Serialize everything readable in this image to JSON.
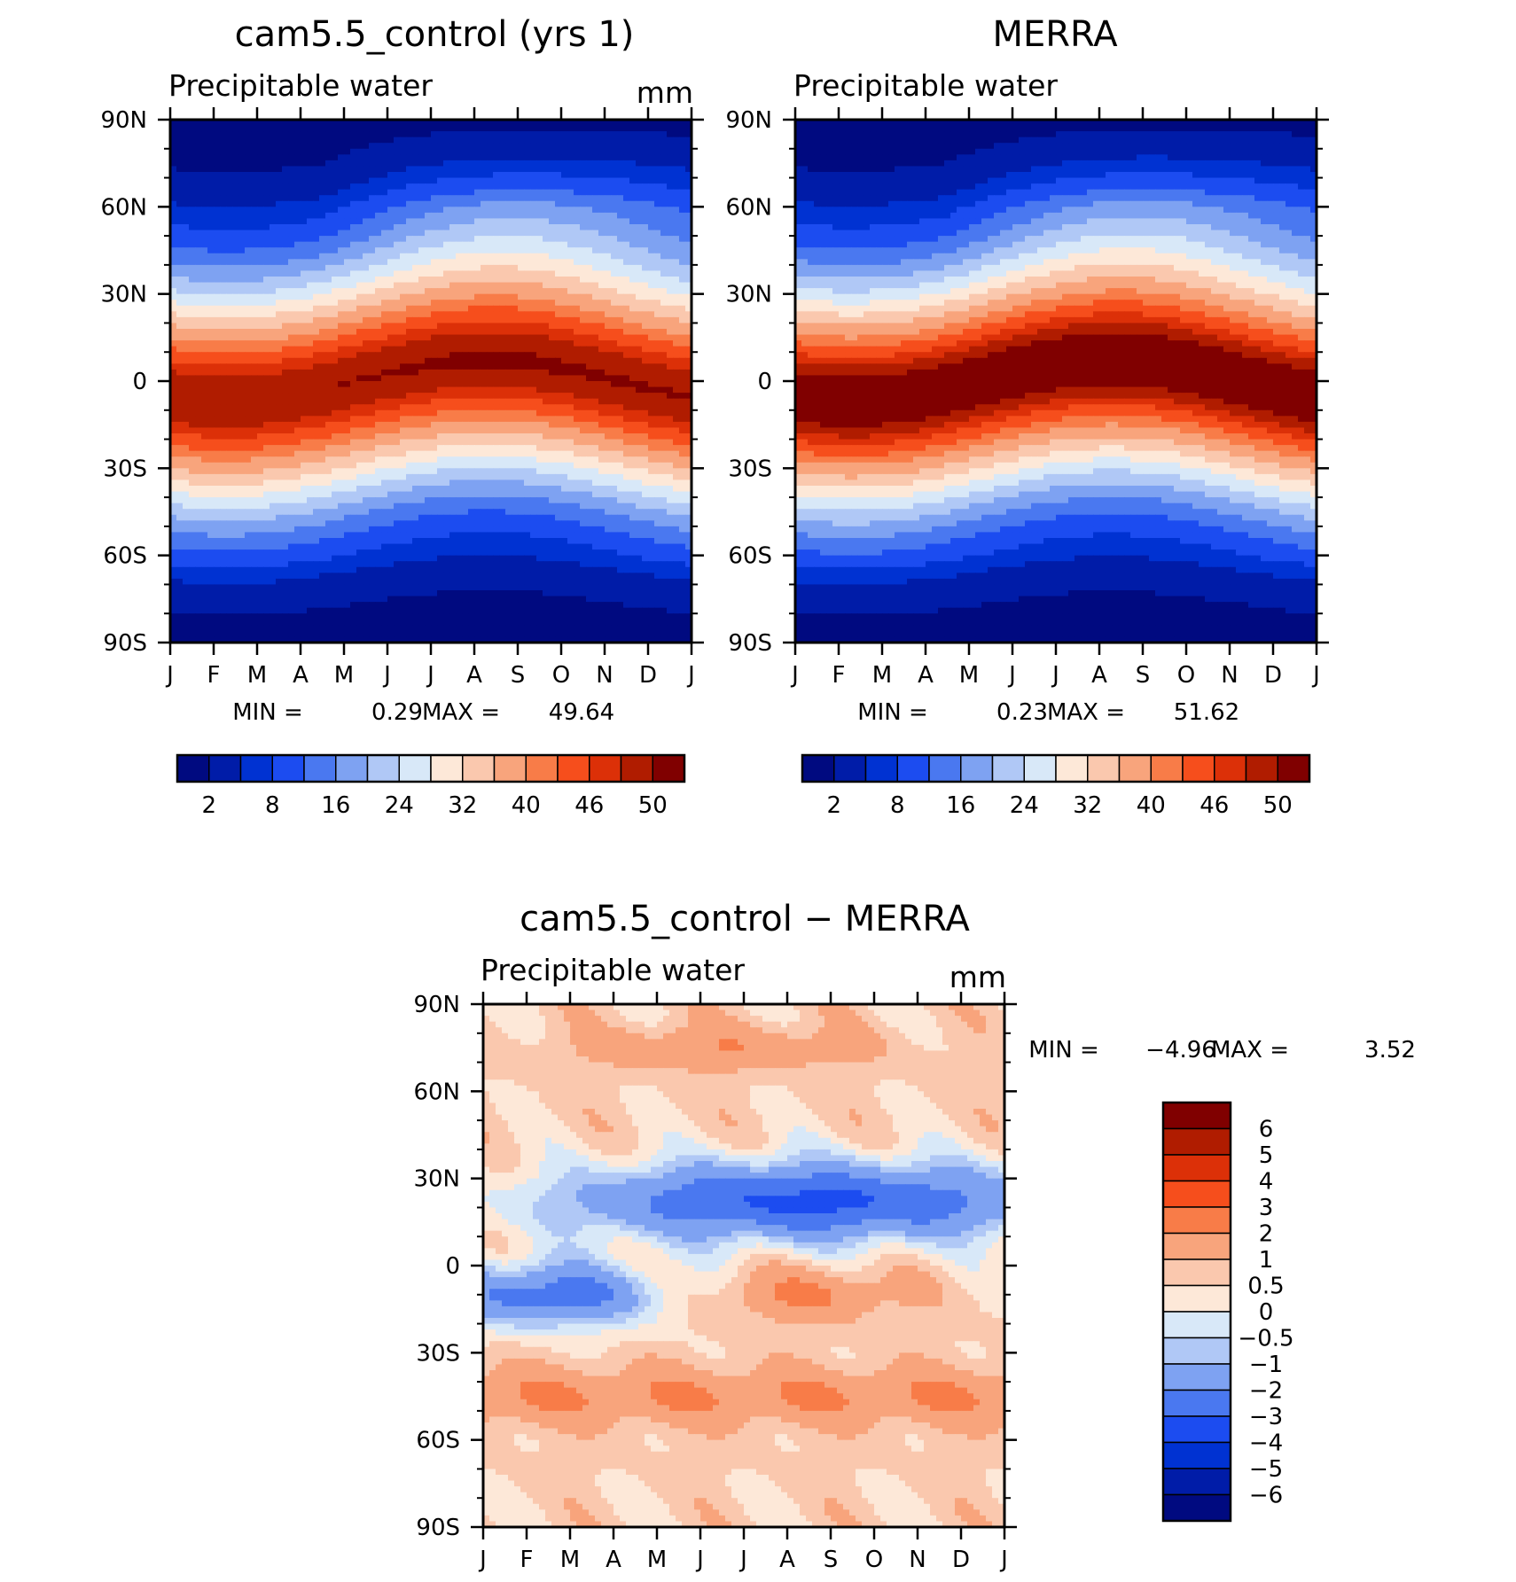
{
  "panels": [
    {
      "id": "model",
      "title": "cam5.5_control (yrs 1)",
      "subtitle": "Precipitable water",
      "units": "mm",
      "stats": {
        "min_label": "MIN =",
        "min": "0.29",
        "max_label": "MAX =",
        "max": "49.64"
      }
    },
    {
      "id": "obs",
      "title": "MERRA",
      "subtitle": "Precipitable water",
      "units": "",
      "stats": {
        "min_label": "MIN =",
        "min": "0.23",
        "max_label": "MAX =",
        "max": "51.62"
      }
    },
    {
      "id": "diff",
      "title": "cam5.5_control − MERRA",
      "subtitle": "Precipitable water",
      "units": "mm",
      "stats": {
        "min_label": "MIN =",
        "min": "−4.96",
        "max_label": "MAX =",
        "max": "3.52"
      }
    }
  ],
  "axes": {
    "lat_labels": [
      "90N",
      "60N",
      "30N",
      "0",
      "30S",
      "60S",
      "90S"
    ],
    "month_labels": [
      "J",
      "F",
      "M",
      "A",
      "M",
      "J",
      "J",
      "A",
      "S",
      "O",
      "N",
      "D",
      "J"
    ]
  },
  "colorbars": {
    "abs": {
      "colors": [
        "#000a80",
        "#001ca8",
        "#0032d2",
        "#1c4cf0",
        "#4a78f0",
        "#7ea2f2",
        "#b0c8f6",
        "#d8e8f8",
        "#fde8d8",
        "#fac8ae",
        "#f8a47c",
        "#f87c48",
        "#f64e1c",
        "#dc3008",
        "#b01c00",
        "#800000"
      ],
      "labels": [
        "2",
        "8",
        "16",
        "24",
        "32",
        "40",
        "46",
        "50"
      ]
    },
    "diff": {
      "colors": [
        "#800000",
        "#b01c00",
        "#dc3008",
        "#f64e1c",
        "#f87c48",
        "#f8a47c",
        "#fac8ae",
        "#fde8d8",
        "#d8e8f8",
        "#b0c8f6",
        "#7ea2f2",
        "#4a78f0",
        "#1c4cf0",
        "#0032d2",
        "#001ca8",
        "#000a80"
      ],
      "labels": [
        "6",
        "5",
        "4",
        "3",
        "2",
        "1",
        "0.5",
        "0",
        "−0.5",
        "−1",
        "−2",
        "−3",
        "−4",
        "−5",
        "−6"
      ]
    }
  },
  "chart_data": [
    {
      "type": "heatmap",
      "title": "cam5.5_control (yrs 1)",
      "variable": "Precipitable water",
      "units": "mm",
      "x": "month (Jan–Jan)",
      "y": "latitude (90S–90N)",
      "min": 0.29,
      "max": 49.64,
      "levels": [
        2,
        8,
        16,
        24,
        32,
        40,
        46,
        50
      ]
    },
    {
      "type": "heatmap",
      "title": "MERRA",
      "variable": "Precipitable water",
      "units": "mm",
      "x": "month (Jan–Jan)",
      "y": "latitude (90S–90N)",
      "min": 0.23,
      "max": 51.62,
      "levels": [
        2,
        8,
        16,
        24,
        32,
        40,
        46,
        50
      ]
    },
    {
      "type": "heatmap",
      "title": "cam5.5_control − MERRA",
      "variable": "Precipitable water",
      "units": "mm",
      "x": "month (Jan–Jan)",
      "y": "latitude (90S–90N)",
      "min": -4.96,
      "max": 3.52,
      "levels": [
        -6,
        -5,
        -4,
        -3,
        -2,
        -1,
        -0.5,
        0,
        0.5,
        1,
        2,
        3,
        4,
        5,
        6
      ]
    }
  ]
}
